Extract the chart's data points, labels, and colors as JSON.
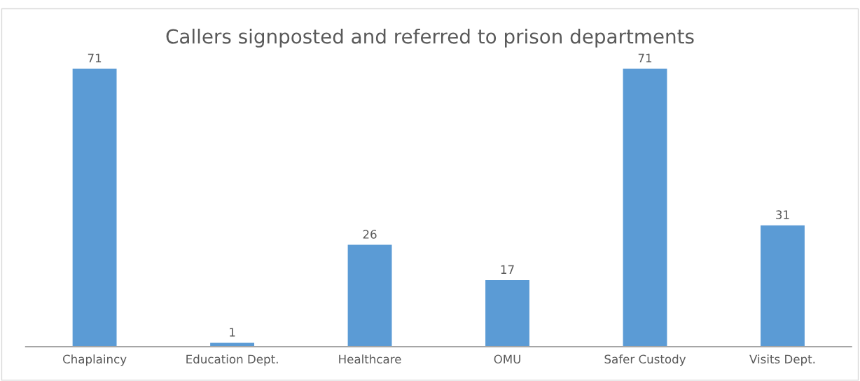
{
  "chart_data": {
    "type": "bar",
    "title": "Callers signposted and referred to prison departments",
    "categories": [
      "Chaplaincy",
      "Education Dept.",
      "Healthcare",
      "OMU",
      "Safer Custody",
      "Visits Dept."
    ],
    "values": [
      71,
      1,
      26,
      17,
      71,
      31
    ],
    "color": "#5b9bd5",
    "data_labels": true,
    "tick_labels": "x"
  }
}
